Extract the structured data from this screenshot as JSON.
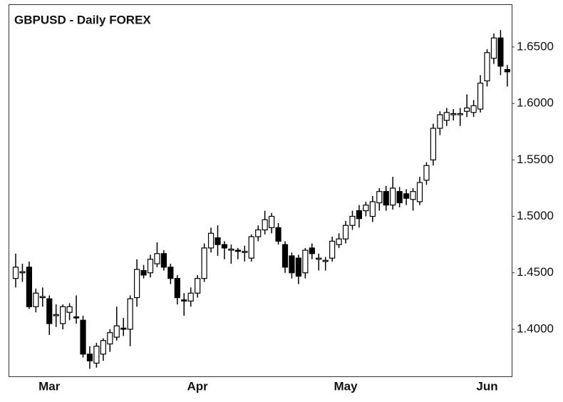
{
  "chart_data": {
    "type": "candlestick",
    "title": "GBPUSD - Daily  FOREX",
    "categories": [
      null,
      null,
      null,
      null,
      null,
      "Mar",
      null,
      null,
      null,
      null,
      null,
      null,
      null,
      null,
      null,
      null,
      null,
      null,
      null,
      null,
      null,
      null,
      null,
      null,
      null,
      null,
      null,
      "Apr",
      null,
      null,
      null,
      null,
      null,
      null,
      null,
      null,
      null,
      null,
      null,
      null,
      null,
      null,
      null,
      null,
      null,
      null,
      null,
      null,
      null,
      "May",
      null,
      null,
      null,
      null,
      null,
      null,
      null,
      null,
      null,
      null,
      null,
      null,
      null,
      null,
      null,
      null,
      null,
      null,
      null,
      null,
      "Jun",
      null,
      null,
      null
    ],
    "open": [
      1.445,
      1.45,
      1.455,
      1.42,
      1.428,
      1.427,
      1.412,
      1.405,
      1.415,
      1.411,
      1.408,
      1.378,
      1.37,
      1.378,
      1.387,
      1.393,
      1.401,
      1.4,
      1.428,
      1.452,
      1.45,
      1.458,
      1.467,
      1.455,
      1.445,
      1.426,
      1.425,
      1.432,
      1.445,
      1.472,
      1.481,
      1.475,
      1.47,
      1.47,
      1.468,
      1.463,
      1.482,
      1.488,
      1.49,
      1.49,
      1.475,
      1.465,
      1.463,
      1.45,
      1.472,
      1.462,
      1.46,
      1.463,
      1.475,
      1.48,
      1.492,
      1.505,
      1.505,
      1.5,
      1.512,
      1.522,
      1.51,
      1.522,
      1.52,
      1.515,
      1.513,
      1.532,
      1.55,
      1.578,
      1.585,
      1.59,
      1.59,
      1.593,
      1.592,
      1.595,
      1.62,
      1.64,
      1.658,
      1.63
    ],
    "high": [
      1.467,
      1.458,
      1.46,
      1.436,
      1.437,
      1.43,
      1.422,
      1.422,
      1.423,
      1.43,
      1.412,
      1.385,
      1.388,
      1.392,
      1.4,
      1.42,
      1.41,
      1.43,
      1.462,
      1.457,
      1.466,
      1.477,
      1.47,
      1.458,
      1.448,
      1.432,
      1.437,
      1.448,
      1.476,
      1.49,
      1.492,
      1.478,
      1.475,
      1.472,
      1.474,
      1.484,
      1.492,
      1.505,
      1.503,
      1.494,
      1.478,
      1.468,
      1.466,
      1.472,
      1.476,
      1.467,
      1.464,
      1.482,
      1.485,
      1.496,
      1.505,
      1.51,
      1.513,
      1.518,
      1.525,
      1.527,
      1.535,
      1.526,
      1.524,
      1.525,
      1.535,
      1.548,
      1.582,
      1.593,
      1.596,
      1.595,
      1.596,
      1.608,
      1.603,
      1.625,
      1.648,
      1.662,
      1.665,
      1.634
    ],
    "low": [
      1.437,
      1.442,
      1.418,
      1.415,
      1.42,
      1.395,
      1.402,
      1.4,
      1.408,
      1.405,
      1.375,
      1.365,
      1.366,
      1.372,
      1.38,
      1.39,
      1.394,
      1.385,
      1.42,
      1.445,
      1.446,
      1.455,
      1.452,
      1.44,
      1.422,
      1.412,
      1.42,
      1.428,
      1.442,
      1.468,
      1.465,
      1.462,
      1.458,
      1.462,
      1.46,
      1.46,
      1.478,
      1.484,
      1.485,
      1.475,
      1.45,
      1.445,
      1.44,
      1.445,
      1.462,
      1.452,
      1.452,
      1.46,
      1.472,
      1.476,
      1.488,
      1.49,
      1.5,
      1.495,
      1.505,
      1.505,
      1.506,
      1.508,
      1.51,
      1.505,
      1.51,
      1.528,
      1.545,
      1.572,
      1.58,
      1.585,
      1.58,
      1.588,
      1.588,
      1.592,
      1.615,
      1.635,
      1.625,
      1.615
    ],
    "close": [
      1.455,
      1.451,
      1.42,
      1.432,
      1.429,
      1.405,
      1.413,
      1.42,
      1.42,
      1.41,
      1.378,
      1.372,
      1.385,
      1.39,
      1.397,
      1.403,
      1.4,
      1.427,
      1.453,
      1.448,
      1.462,
      1.467,
      1.455,
      1.445,
      1.428,
      1.425,
      1.432,
      1.445,
      1.472,
      1.485,
      1.475,
      1.472,
      1.471,
      1.469,
      1.469,
      1.482,
      1.488,
      1.497,
      1.5,
      1.478,
      1.455,
      1.45,
      1.447,
      1.47,
      1.467,
      1.463,
      1.461,
      1.478,
      1.48,
      1.492,
      1.5,
      1.498,
      1.51,
      1.513,
      1.522,
      1.51,
      1.525,
      1.512,
      1.516,
      1.522,
      1.53,
      1.545,
      1.578,
      1.59,
      1.592,
      1.591,
      1.591,
      1.596,
      1.598,
      1.618,
      1.645,
      1.658,
      1.633,
      1.628
    ],
    "up_color": "#ffffff",
    "down_color": "#000000",
    "ylim": [
      1.3583,
      1.6872
    ],
    "yticks": [
      {
        "value": 1.4,
        "label": "1.4000"
      },
      {
        "value": 1.45,
        "label": "1.4500"
      },
      {
        "value": 1.5,
        "label": "1.5000"
      },
      {
        "value": 1.55,
        "label": "1.5500"
      },
      {
        "value": 1.6,
        "label": "1.6000"
      },
      {
        "value": 1.65,
        "label": "1.6500"
      }
    ]
  }
}
